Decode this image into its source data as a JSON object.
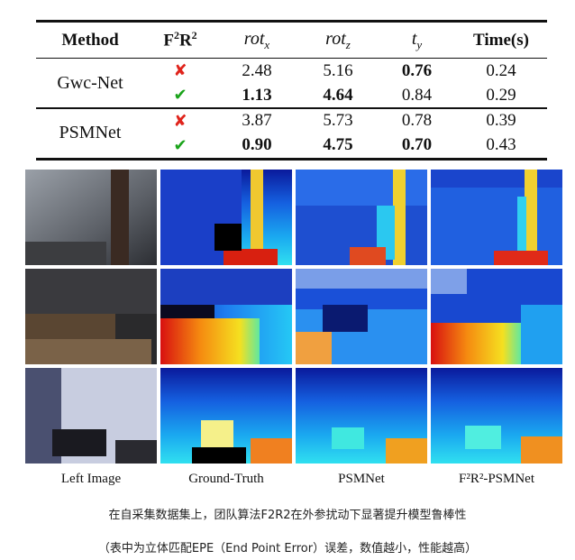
{
  "table": {
    "headers": {
      "method": "Method",
      "f2r2_base": "F",
      "f2r2_sup1": "2",
      "f2r2_mid": "R",
      "f2r2_sup2": "2",
      "rot_x": "rot",
      "rot_x_sub": "x",
      "rot_z": "rot",
      "rot_z_sub": "z",
      "t_y": "t",
      "t_y_sub": "y",
      "time": "Time(s)"
    },
    "groups": [
      {
        "method": "Gwc-Net",
        "rows": [
          {
            "f2r2": "✘",
            "rot_x": "2.48",
            "rot_z": "5.16",
            "t_y": "0.76",
            "time": "0.24"
          },
          {
            "f2r2": "✔",
            "rot_x": "1.13",
            "rot_z": "4.64",
            "t_y": "0.84",
            "time": "0.29"
          }
        ]
      },
      {
        "method": "PSMNet",
        "rows": [
          {
            "f2r2": "✘",
            "rot_x": "3.87",
            "rot_z": "5.73",
            "t_y": "0.78",
            "time": "0.39"
          },
          {
            "f2r2": "✔",
            "rot_x": "0.90",
            "rot_z": "4.75",
            "t_y": "0.70",
            "time": "0.43"
          }
        ]
      }
    ]
  },
  "figure": {
    "column_labels": [
      "Left Image",
      "Ground-Truth",
      "PSMNet",
      "F²R²-PSMNet"
    ]
  },
  "caption": {
    "line1": "在自采集数据集上，团队算法F2R2在外参扰动下显著提升模型鲁棒性",
    "line2": "（表中为立体匹配EPE（End Point Error）误差，数值越小，性能越高）"
  },
  "colors": {
    "cross": "#e0241c",
    "check": "#1aa31a"
  }
}
